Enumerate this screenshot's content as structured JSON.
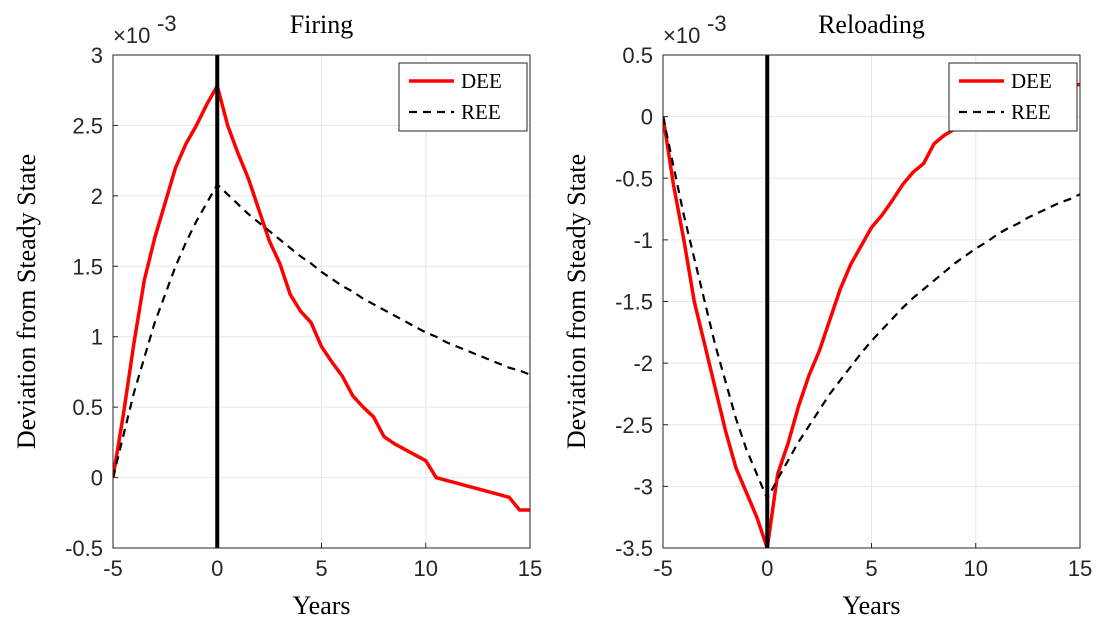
{
  "chart_data": [
    {
      "type": "line",
      "title": "Firing",
      "xlabel": "Years",
      "ylabel": "Deviation from Steady State",
      "y_multiplier": "×10",
      "y_multiplier_exponent": "-3",
      "x": [
        -5,
        -4.5,
        -4,
        -3.5,
        -3,
        -2.5,
        -2,
        -1.5,
        -1,
        -0.5,
        0,
        0.5,
        1,
        1.5,
        2,
        2.5,
        3,
        3.5,
        4,
        4.5,
        5,
        5.5,
        6,
        6.5,
        7,
        7.5,
        8,
        8.5,
        9,
        9.5,
        10,
        10.5,
        11,
        11.5,
        12,
        12.5,
        13,
        13.5,
        14,
        14.5,
        15
      ],
      "series": [
        {
          "name": "DEE",
          "color": "#ff0000",
          "linestyle": "solid",
          "values": [
            0,
            0.45,
            0.95,
            1.4,
            1.7,
            1.95,
            2.2,
            2.37,
            2.5,
            2.65,
            2.78,
            2.5,
            2.3,
            2.12,
            1.9,
            1.68,
            1.52,
            1.3,
            1.18,
            1.1,
            0.93,
            0.82,
            0.72,
            0.58,
            0.5,
            0.43,
            0.29,
            0.24,
            0.2,
            0.16,
            0.12,
            0,
            -0.02,
            -0.04,
            -0.06,
            -0.08,
            -0.1,
            -0.12,
            -0.14,
            -0.23,
            -0.23
          ]
        },
        {
          "name": "REE",
          "color": "#000000",
          "linestyle": "dashed",
          "values": [
            0,
            0.3,
            0.6,
            0.85,
            1.1,
            1.3,
            1.5,
            1.67,
            1.82,
            1.95,
            2.08,
            2.01,
            1.94,
            1.87,
            1.81,
            1.75,
            1.69,
            1.63,
            1.57,
            1.52,
            1.46,
            1.41,
            1.36,
            1.32,
            1.27,
            1.23,
            1.19,
            1.15,
            1.11,
            1.07,
            1.03,
            1.0,
            0.96,
            0.93,
            0.9,
            0.87,
            0.84,
            0.81,
            0.78,
            0.76,
            0.73
          ]
        }
      ],
      "vline": 0,
      "xlim": [
        -5,
        15
      ],
      "xticks": [
        -5,
        0,
        5,
        10,
        15
      ],
      "ylim": [
        -0.5,
        3
      ],
      "yticks": [
        -0.5,
        0,
        0.5,
        1,
        1.5,
        2,
        2.5,
        3
      ],
      "grid": true,
      "legend": "upper-right"
    },
    {
      "type": "line",
      "title": "Reloading",
      "xlabel": "Years",
      "ylabel": "Deviation from Steady State",
      "y_multiplier": "×10",
      "y_multiplier_exponent": "-3",
      "x": [
        -5,
        -4.5,
        -4,
        -3.5,
        -3,
        -2.5,
        -2,
        -1.5,
        -1,
        -0.5,
        0,
        0.5,
        1,
        1.5,
        2,
        2.5,
        3,
        3.5,
        4,
        4.5,
        5,
        5.5,
        6,
        6.5,
        7,
        7.5,
        8,
        8.5,
        9,
        9.5,
        10,
        10.5,
        11,
        11.5,
        12,
        12.5,
        13,
        13.5,
        14,
        14.5,
        15
      ],
      "series": [
        {
          "name": "DEE",
          "color": "#ff0000",
          "linestyle": "solid",
          "values": [
            0,
            -0.55,
            -1.0,
            -1.5,
            -1.85,
            -2.2,
            -2.55,
            -2.85,
            -3.05,
            -3.25,
            -3.5,
            -2.9,
            -2.65,
            -2.35,
            -2.1,
            -1.9,
            -1.65,
            -1.4,
            -1.2,
            -1.05,
            -0.9,
            -0.8,
            -0.68,
            -0.55,
            -0.45,
            -0.38,
            -0.22,
            -0.15,
            -0.1,
            -0.02,
            0.05,
            0.15,
            0.22,
            0.25,
            0.26,
            0.26,
            0.26,
            0.26,
            0.26,
            0.26,
            0.26
          ]
        },
        {
          "name": "REE",
          "color": "#000000",
          "linestyle": "dashed",
          "values": [
            0,
            -0.4,
            -0.8,
            -1.15,
            -1.5,
            -1.85,
            -2.15,
            -2.45,
            -2.7,
            -2.9,
            -3.1,
            -2.94,
            -2.79,
            -2.64,
            -2.51,
            -2.38,
            -2.25,
            -2.14,
            -2.03,
            -1.92,
            -1.82,
            -1.73,
            -1.64,
            -1.55,
            -1.47,
            -1.4,
            -1.33,
            -1.26,
            -1.19,
            -1.13,
            -1.07,
            -1.02,
            -0.96,
            -0.91,
            -0.87,
            -0.82,
            -0.78,
            -0.74,
            -0.7,
            -0.67,
            -0.63
          ]
        }
      ],
      "vline": 0,
      "xlim": [
        -5,
        15
      ],
      "xticks": [
        -5,
        0,
        5,
        10,
        15
      ],
      "ylim": [
        -3.5,
        0.5
      ],
      "yticks": [
        -3.5,
        -3,
        -2.5,
        -2,
        -1.5,
        -1,
        -0.5,
        0,
        0.5
      ],
      "grid": true,
      "legend": "upper-right"
    }
  ]
}
